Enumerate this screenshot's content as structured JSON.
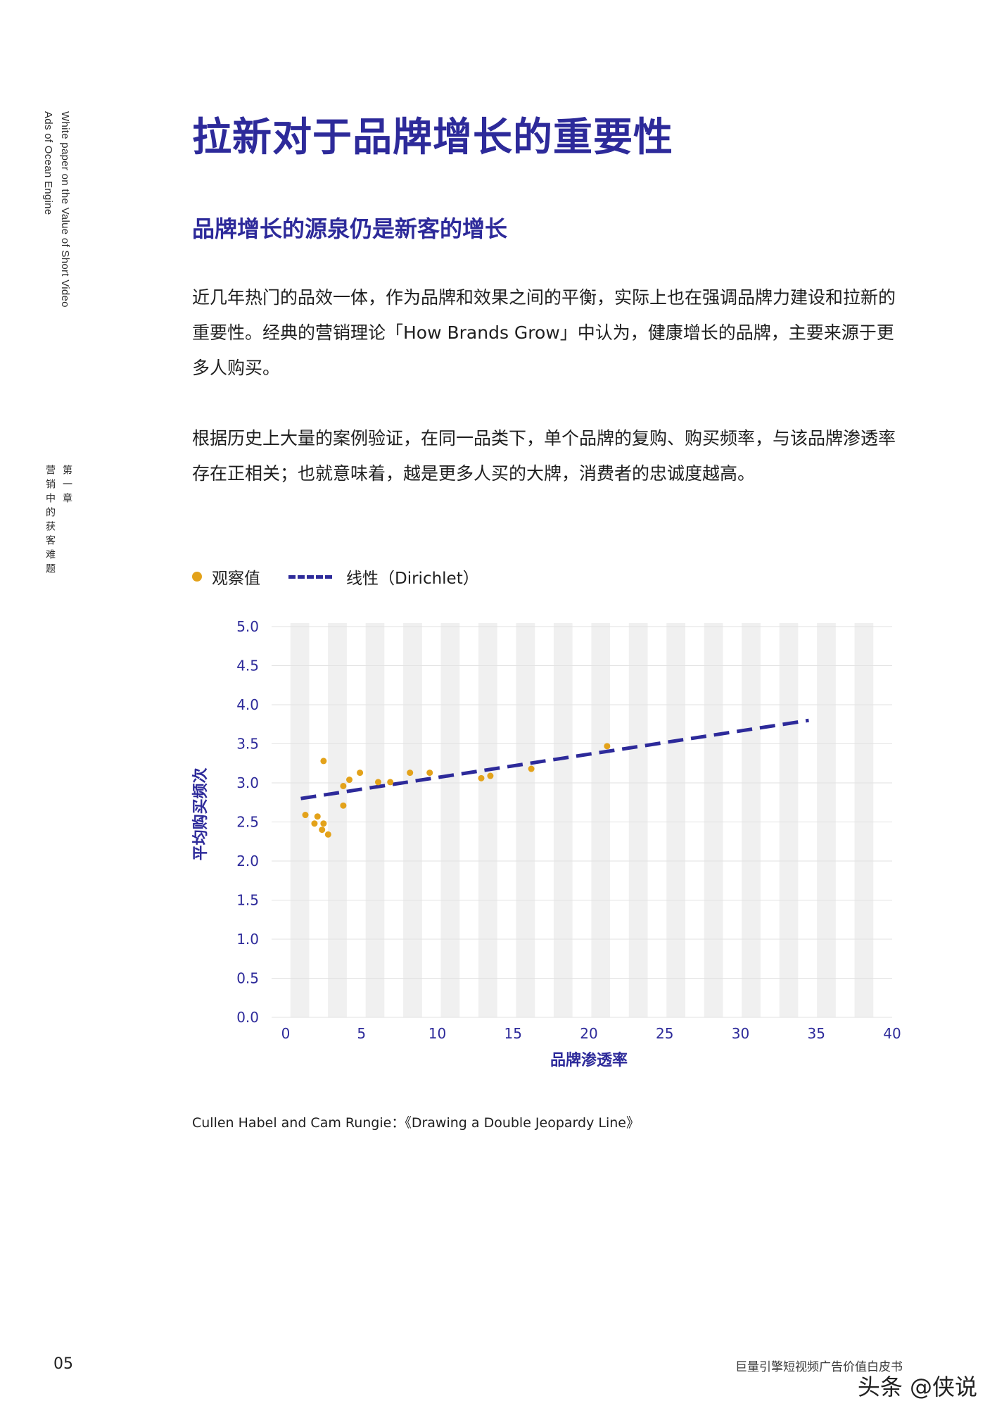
{
  "sidebar": {
    "en_line1": "White paper on the Value of Short Video",
    "en_line2": "Ads of Ocean Engine",
    "chapter_line1": "第一章",
    "chapter_line2": "营销中的获客难题"
  },
  "title": "拉新对于品牌增长的重要性",
  "subtitle": "品牌增长的源泉仍是新客的增长",
  "paragraphs": [
    "近几年热门的品效一体，作为品牌和效果之间的平衡，实际上也在强调品牌力建设和拉新的重要性。经典的营销理论「How Brands Grow」中认为，健康增长的品牌，主要来源于更多人购买。",
    "根据历史上大量的案例验证，在同一品类下，单个品牌的复购、购买频率，与该品牌渗透率存在正相关；也就意味着，越是更多人买的大牌，消费者的忠诚度越高。"
  ],
  "legend": {
    "observed": "观察值",
    "linear": "线性（Dirichlet）"
  },
  "chart_data": {
    "type": "scatter",
    "xlabel": "品牌渗透率",
    "ylabel": "平均购买频次",
    "xlim": [
      0,
      40
    ],
    "ylim": [
      0,
      5.0
    ],
    "x_ticks": [
      "0",
      "5",
      "10",
      "15",
      "20",
      "25",
      "30",
      "35",
      "40"
    ],
    "y_ticks": [
      "0.0",
      "0.5",
      "1.0",
      "1.5",
      "2.0",
      "2.5",
      "3.0",
      "3.5",
      "4.0",
      "4.5",
      "5.0"
    ],
    "series": [
      {
        "name": "观察值",
        "type": "scatter",
        "color": "#e3a21a",
        "points": [
          [
            1.3,
            2.59
          ],
          [
            1.9,
            2.48
          ],
          [
            2.1,
            2.57
          ],
          [
            2.4,
            2.4
          ],
          [
            2.5,
            2.48
          ],
          [
            2.8,
            2.34
          ],
          [
            2.5,
            3.28
          ],
          [
            3.8,
            2.96
          ],
          [
            3.8,
            2.71
          ],
          [
            4.2,
            3.04
          ],
          [
            4.9,
            3.13
          ],
          [
            6.1,
            3.01
          ],
          [
            6.9,
            3.01
          ],
          [
            8.2,
            3.13
          ],
          [
            9.5,
            3.13
          ],
          [
            12.9,
            3.06
          ],
          [
            13.5,
            3.09
          ],
          [
            16.2,
            3.18
          ],
          [
            21.2,
            3.47
          ]
        ]
      },
      {
        "name": "线性（Dirichlet）",
        "type": "line",
        "style": "dashed",
        "color": "#2d2a9a",
        "points": [
          [
            1.0,
            2.8
          ],
          [
            34.5,
            3.8
          ]
        ]
      }
    ],
    "grid": true,
    "legend_position": "top-left"
  },
  "source": "Cullen Habel and Cam Rungie：《Drawing a Double Jeopardy Line》",
  "footer": {
    "page_number": "05",
    "doc_title": "巨量引擎短视频广告价值白皮书"
  },
  "watermark": "头条 @侠说"
}
